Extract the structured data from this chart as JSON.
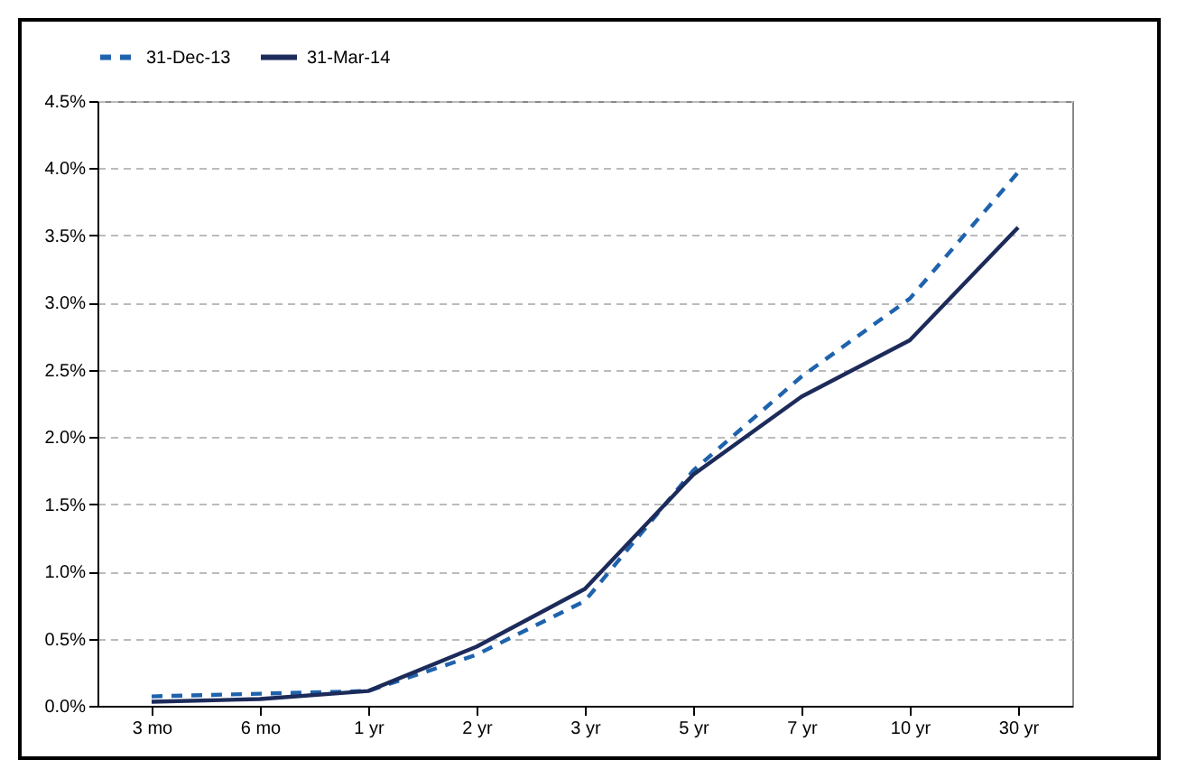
{
  "chart_data": {
    "type": "line",
    "categories": [
      "3 mo",
      "6 mo",
      "1 yr",
      "2 yr",
      "3 yr",
      "5 yr",
      "7 yr",
      "10 yr",
      "30 yr"
    ],
    "series": [
      {
        "name": "31-Dec-13",
        "color": "#1f63ad",
        "line_style": "dashed",
        "values": [
          0.07,
          0.09,
          0.11,
          0.38,
          0.78,
          1.75,
          2.45,
          3.03,
          3.97
        ]
      },
      {
        "name": "31-Mar-14",
        "color": "#1c2b5a",
        "line_style": "solid",
        "values": [
          0.03,
          0.05,
          0.11,
          0.44,
          0.87,
          1.72,
          2.3,
          2.72,
          3.56
        ]
      }
    ],
    "ylim": [
      0,
      4.5
    ],
    "yticks": [
      {
        "value": 0,
        "label": "0.0%"
      },
      {
        "value": 0.5,
        "label": "0.5%"
      },
      {
        "value": 1,
        "label": "1.0%"
      },
      {
        "value": 1.5,
        "label": "1.5%"
      },
      {
        "value": 2,
        "label": "2.0%"
      },
      {
        "value": 2.5,
        "label": "2.5%"
      },
      {
        "value": 3,
        "label": "3.0%"
      },
      {
        "value": 3.5,
        "label": "3.5%"
      },
      {
        "value": 4,
        "label": "4.0%"
      },
      {
        "value": 4.5,
        "label": "4.5%"
      }
    ],
    "grid": "y",
    "legend": "top",
    "marker": "none"
  }
}
